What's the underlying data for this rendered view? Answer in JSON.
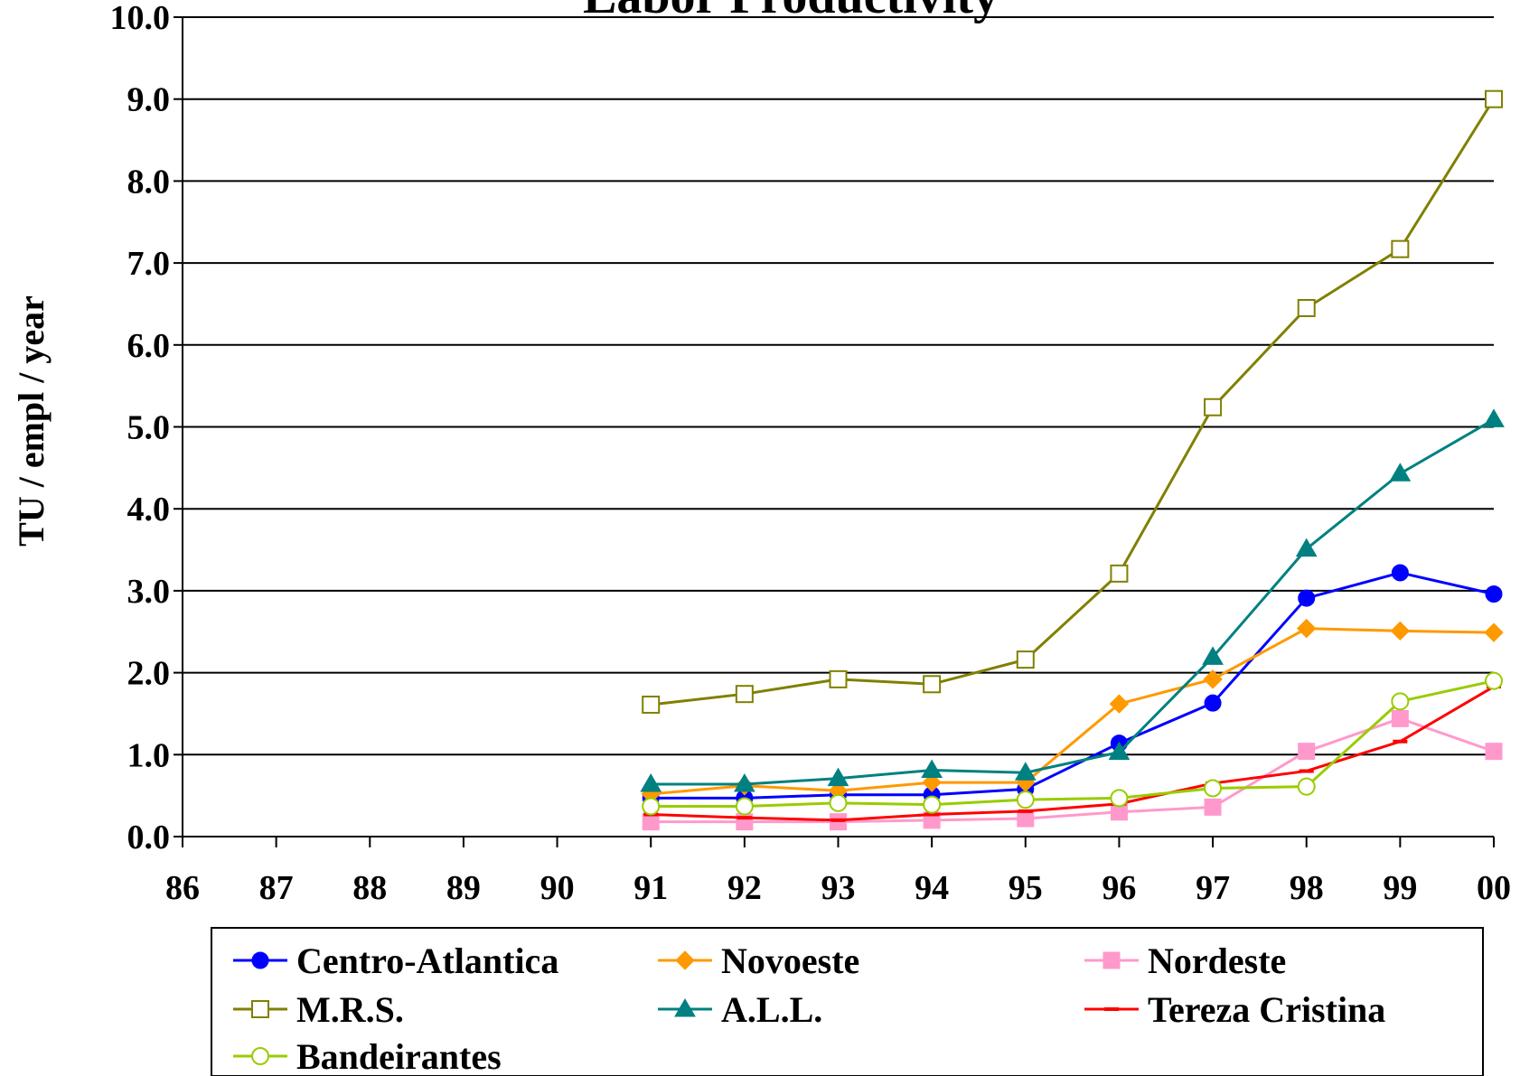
{
  "chart_data": {
    "type": "line",
    "title": "Labor Productivity",
    "ylabel": "TU / empl / year",
    "xlabel": "",
    "ylim": [
      0,
      10
    ],
    "yticks": [
      "0.0",
      "1.0",
      "2.0",
      "3.0",
      "4.0",
      "5.0",
      "6.0",
      "7.0",
      "8.0",
      "9.0",
      "10.0"
    ],
    "categories": [
      "86",
      "87",
      "88",
      "89",
      "90",
      "91",
      "92",
      "93",
      "94",
      "95",
      "96",
      "97",
      "98",
      "99",
      "00"
    ],
    "grid": "horizontal",
    "legend_position": "bottom",
    "series": [
      {
        "name": "Centro-Atlantica",
        "color": "#0000ff",
        "marker": "filled-circle",
        "values": [
          null,
          null,
          null,
          null,
          null,
          0.47,
          0.47,
          0.51,
          0.51,
          0.58,
          1.14,
          1.63,
          2.91,
          3.22,
          2.96
        ]
      },
      {
        "name": "Novoeste",
        "color": "#ff9900",
        "marker": "filled-diamond",
        "values": [
          null,
          null,
          null,
          null,
          null,
          0.52,
          0.62,
          0.56,
          0.66,
          0.66,
          1.62,
          1.92,
          2.54,
          2.51,
          2.49
        ]
      },
      {
        "name": "Nordeste",
        "color": "#ff99cc",
        "marker": "filled-square",
        "values": [
          null,
          null,
          null,
          null,
          null,
          0.18,
          0.18,
          0.18,
          0.2,
          0.22,
          0.3,
          0.36,
          1.04,
          1.44,
          1.04
        ]
      },
      {
        "name": "M.R.S.",
        "color": "#808000",
        "marker": "open-square",
        "values": [
          null,
          null,
          null,
          null,
          null,
          1.61,
          1.74,
          1.92,
          1.86,
          2.16,
          3.21,
          5.24,
          6.45,
          7.17,
          9.0
        ]
      },
      {
        "name": "A.L.L.",
        "color": "#008080",
        "marker": "filled-triangle",
        "values": [
          null,
          null,
          null,
          null,
          null,
          0.64,
          0.64,
          0.71,
          0.81,
          0.78,
          1.03,
          2.19,
          3.51,
          4.43,
          5.09
        ]
      },
      {
        "name": "Tereza Cristina",
        "color": "#ff0000",
        "marker": "dash",
        "values": [
          null,
          null,
          null,
          null,
          null,
          0.27,
          0.23,
          0.2,
          0.27,
          0.31,
          0.4,
          0.65,
          0.8,
          1.16,
          1.83
        ]
      },
      {
        "name": "Bandeirantes",
        "color": "#99cc00",
        "marker": "open-circle",
        "values": [
          null,
          null,
          null,
          null,
          null,
          0.37,
          0.37,
          0.41,
          0.39,
          0.45,
          0.47,
          0.59,
          0.61,
          1.65,
          1.9
        ]
      }
    ]
  }
}
